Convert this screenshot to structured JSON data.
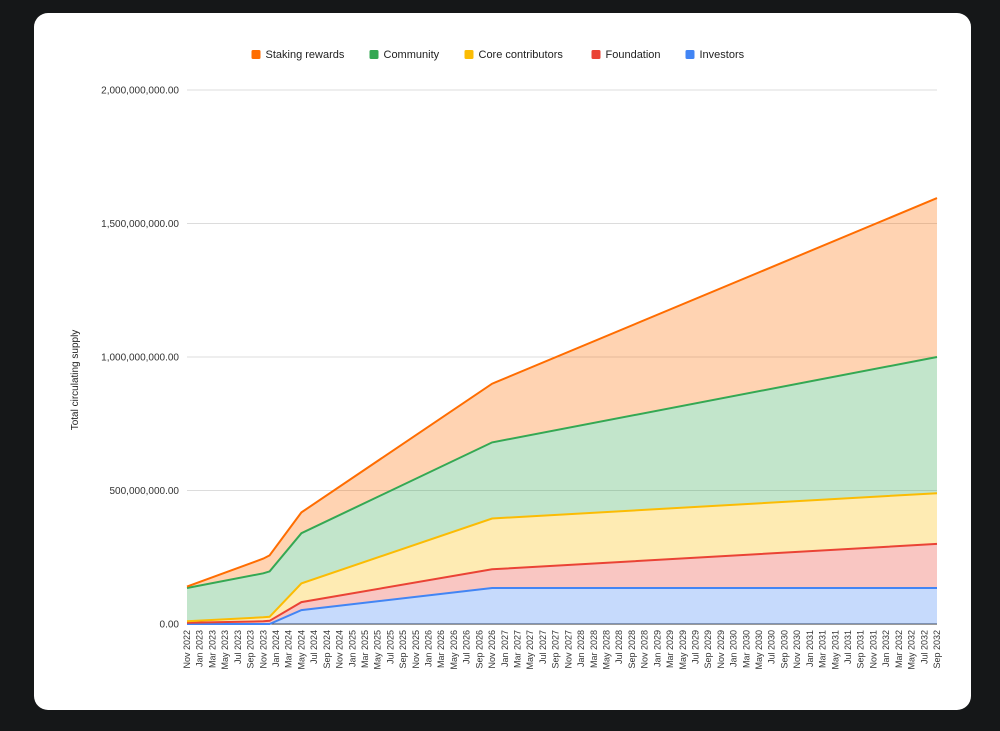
{
  "chart_data": {
    "type": "area",
    "stacked": true,
    "title": "",
    "xlabel": "",
    "ylabel": "Total circulating supply",
    "ylim": [
      0,
      2000000000
    ],
    "y_ticks": [
      0,
      500000000,
      1000000000,
      1500000000,
      2000000000
    ],
    "y_tick_labels": [
      "0.00",
      "500,000,000.00",
      "1,000,000,000.00",
      "1,500,000,000.00",
      "2,000,000,000.00"
    ],
    "grid": true,
    "legend_position": "top",
    "x_tick_labels": [
      "Nov 2022",
      "Jan 2023",
      "Mar 2023",
      "May 2023",
      "Jul 2023",
      "Sep 2023",
      "Nov 2023",
      "Jan 2024",
      "Mar 2024",
      "May 2024",
      "Jul 2024",
      "Sep 2024",
      "Nov 2024",
      "Jan 2025",
      "Mar 2025",
      "May 2025",
      "Jul 2025",
      "Sep 2025",
      "Nov 2025",
      "Jan 2026",
      "Mar 2026",
      "May 2026",
      "Jul 2026",
      "Sep 2026",
      "Nov 2026",
      "Jan 2027",
      "Mar 2027",
      "May 2027",
      "Jul 2027",
      "Sep 2027",
      "Nov 2027",
      "Jan 2028",
      "Mar 2028",
      "May 2028",
      "Jul 2028",
      "Sep 2028",
      "Nov 2028",
      "Jan 2029",
      "Mar 2029",
      "May 2029",
      "Jul 2029",
      "Sep 2029",
      "Nov 2029",
      "Jan 2030",
      "Mar 2030",
      "May 2030",
      "Jul 2030",
      "Sep 2030",
      "Nov 2030",
      "Jan 2031",
      "Mar 2031",
      "May 2031",
      "Jul 2031",
      "Sep 2031",
      "Nov 2031",
      "Jan 2032",
      "Mar 2032",
      "May 2032",
      "Jul 2032",
      "Sep 2032"
    ],
    "x": [
      "Nov 2022",
      "Nov 2023",
      "Dec 2023",
      "May 2024",
      "Nov 2026",
      "Sep 2032"
    ],
    "series": [
      {
        "name": "Investors",
        "color": "#4285f4",
        "values": [
          0,
          0,
          0,
          52000000,
          135000000,
          135000000
        ]
      },
      {
        "name": "Foundation",
        "color": "#ea4335",
        "values": [
          5000000,
          10000000,
          12000000,
          30000000,
          70000000,
          165000000
        ]
      },
      {
        "name": "Core contributors",
        "color": "#fbbc04",
        "values": [
          5000000,
          15000000,
          15000000,
          70000000,
          190000000,
          190000000
        ]
      },
      {
        "name": "Community",
        "color": "#34a853",
        "values": [
          125000000,
          165000000,
          170000000,
          188000000,
          285000000,
          510000000
        ]
      },
      {
        "name": "Staking rewards",
        "color": "#ff6d01",
        "values": [
          5000000,
          55000000,
          60000000,
          78000000,
          220000000,
          595000000
        ]
      }
    ],
    "legend_order": [
      "Staking rewards",
      "Community",
      "Core contributors",
      "Foundation",
      "Investors"
    ]
  }
}
